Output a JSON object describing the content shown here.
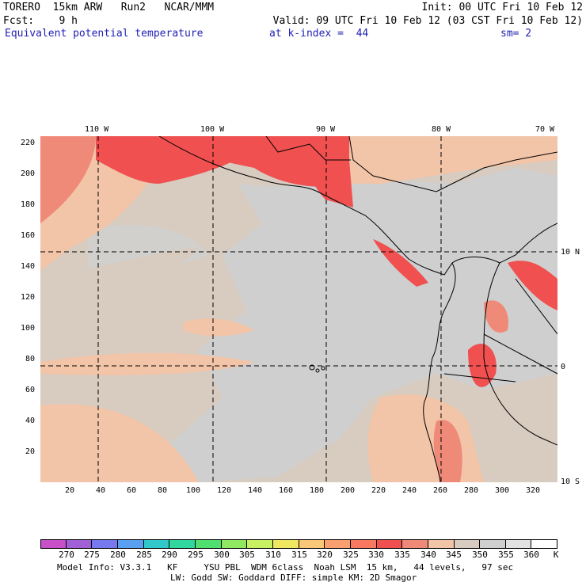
{
  "header": {
    "line1_left": "TORERO  15km ARW   Run2   NCAR/MMM",
    "line1_right": "Init: 00 UTC Fri 10 Feb 12",
    "line2_left": "Fcst:    9 h",
    "line2_right": "Valid: 09 UTC Fri 10 Feb 12 (03 CST Fri 10 Feb 12)",
    "field": "Equivalent potential temperature",
    "level": "at k-index =  44",
    "smoothing": "sm= 2"
  },
  "map": {
    "top_lon_labels": [
      "110 W",
      "100 W",
      "90 W",
      "80 W",
      "70 W"
    ],
    "right_lat_labels": [
      "10 N",
      "0",
      "10 S"
    ],
    "left_grid_labels": [
      "220",
      "200",
      "180",
      "160",
      "140",
      "120",
      "100",
      "80",
      "60",
      "40",
      "20"
    ],
    "bottom_grid_labels": [
      "20",
      "40",
      "60",
      "80",
      "100",
      "120",
      "140",
      "160",
      "180",
      "200",
      "220",
      "240",
      "260",
      "280",
      "300",
      "320"
    ]
  },
  "colorbar": {
    "unit": "K",
    "labels": [
      "270",
      "275",
      "280",
      "285",
      "290",
      "295",
      "300",
      "305",
      "310",
      "315",
      "320",
      "325",
      "330",
      "335",
      "340",
      "345",
      "350",
      "355",
      "360"
    ],
    "colors": [
      "#c850c8",
      "#a060d8",
      "#7878f0",
      "#5aa0f0",
      "#30c8c8",
      "#30d8a0",
      "#50e070",
      "#90e860",
      "#c8f060",
      "#f0e860",
      "#f8c878",
      "#f8a070",
      "#f87860",
      "#f05050",
      "#f08a78",
      "#f2c4a8",
      "#d8cbc0",
      "#cfcfcf",
      "#e2e2e2",
      "#ffffff"
    ]
  },
  "footer": {
    "line1": "Model Info: V3.3.1   KF     YSU PBL  WDM 6class  Noah LSM  15 km,   44 levels,   97 sec",
    "line2": "LW: Godd SW: Goddard DIFF: simple KM: 2D Smagor"
  }
}
